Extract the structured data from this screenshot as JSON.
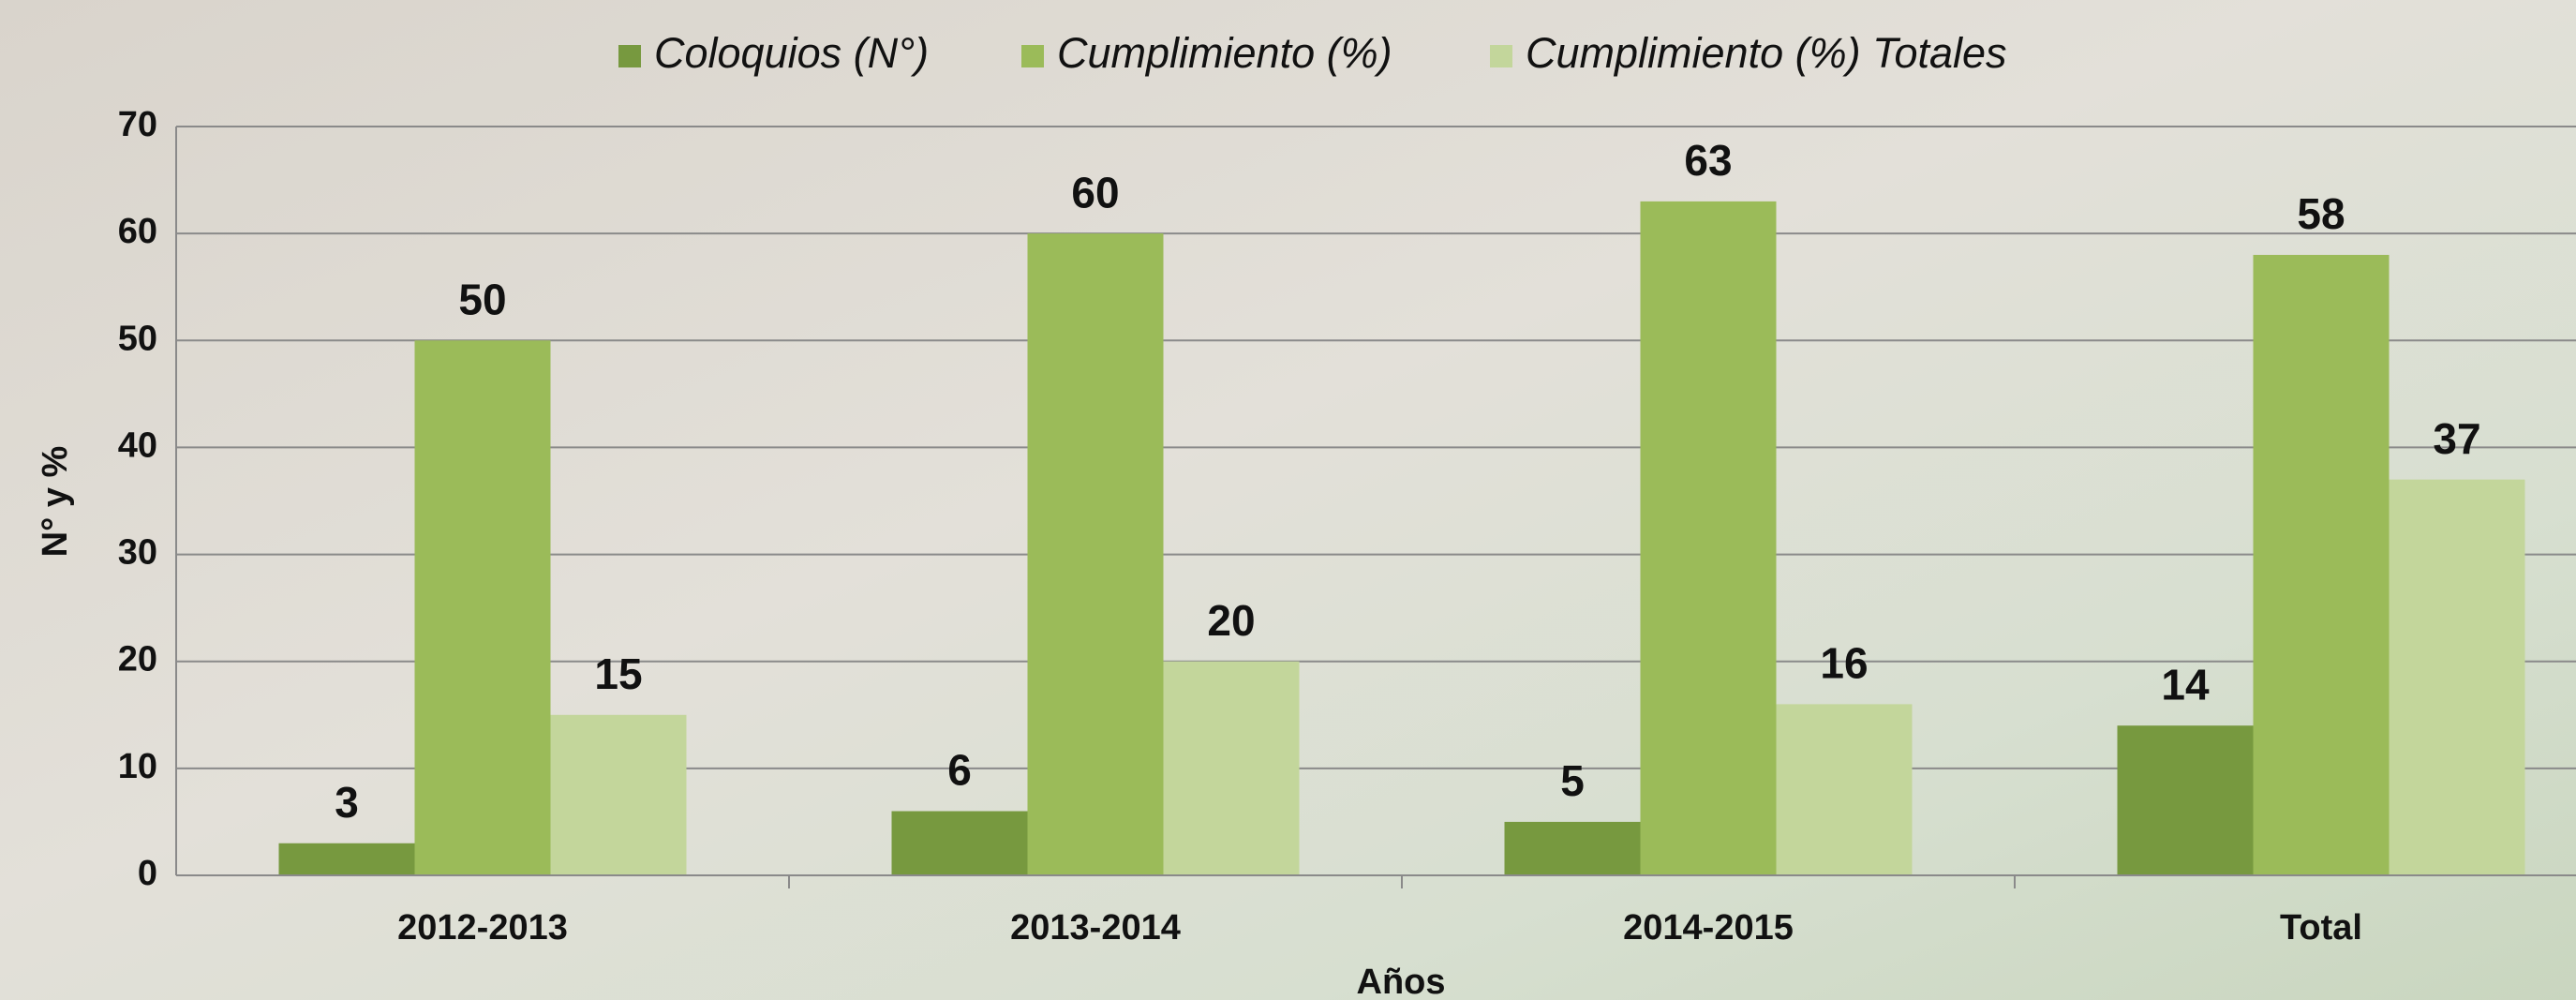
{
  "chart_data": {
    "type": "bar",
    "categories": [
      "2012-2013",
      "2013-2014",
      "2014-2015",
      "Total"
    ],
    "series": [
      {
        "name": "Coloquios (N°)",
        "color": "#77993f",
        "values": [
          3,
          6,
          5,
          14
        ]
      },
      {
        "name": "Cumplimiento (%)",
        "color": "#9bbb59",
        "values": [
          50,
          60,
          63,
          58
        ]
      },
      {
        "name": "Cumplimiento (%) Totales",
        "color": "#c3d69b",
        "values": [
          15,
          20,
          16,
          37
        ]
      }
    ],
    "ylim": [
      0,
      70
    ],
    "yticks": [
      0,
      10,
      20,
      30,
      40,
      50,
      60,
      70
    ],
    "y_label": "N° y %",
    "x_label": "Años",
    "grid": true,
    "legend": "top"
  }
}
